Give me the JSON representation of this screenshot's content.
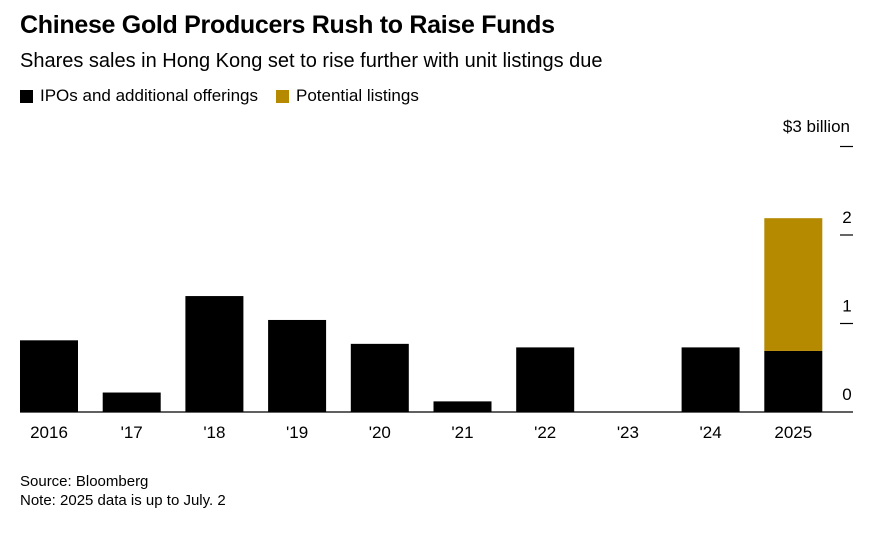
{
  "chart_data": {
    "type": "bar",
    "stacked": true,
    "title": "Chinese Gold Producers Rush to Raise Funds",
    "subtitle": "Shares sales in Hong Kong set to rise further with unit listings due",
    "categories": [
      "2016",
      "'17",
      "'18",
      "'19",
      "'20",
      "'21",
      "'22",
      "'23",
      "'24",
      "2025"
    ],
    "series": [
      {
        "name": "IPOs and additional offerings",
        "color": "#000000",
        "values": [
          0.81,
          0.22,
          1.31,
          1.04,
          0.77,
          0.12,
          0.73,
          0,
          0.73,
          0.69
        ]
      },
      {
        "name": "Potential listings",
        "color": "#b58900",
        "values": [
          0,
          0,
          0,
          0,
          0,
          0,
          0,
          0,
          0,
          1.5
        ]
      }
    ],
    "unit_label": "$3 billion",
    "y_ticks": [
      "0",
      "1",
      "2",
      ""
    ],
    "ylim": [
      0,
      3
    ],
    "legend_position": "top-left",
    "grid": false
  },
  "footer": {
    "source": "Source: Bloomberg",
    "note": "Note: 2025 data is up to July. 2"
  }
}
